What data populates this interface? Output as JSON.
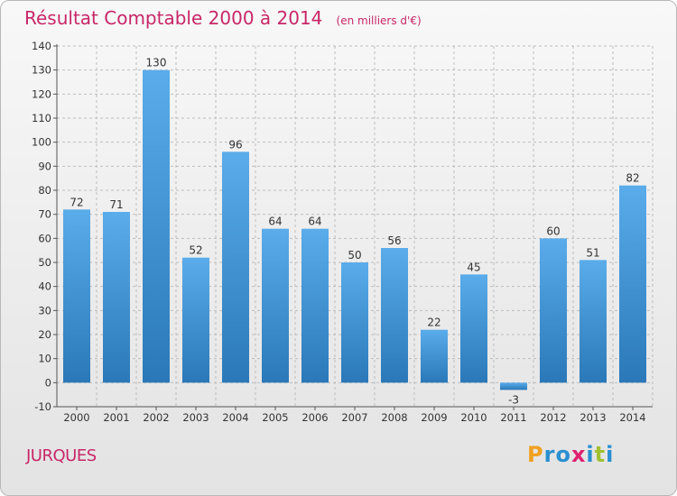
{
  "header": {
    "title": "Résultat Comptable 2000 à 2014",
    "unit": "(en milliers d'€)"
  },
  "commune": "JURQUES",
  "logo": {
    "letters": [
      "P",
      "r",
      "o",
      "x",
      "i",
      "t",
      "i"
    ],
    "colors": [
      "#f0a020",
      "#2a8fd0",
      "#2a8fd0",
      "#e02070",
      "#2a8fd0",
      "#a0c030",
      "#2a8fd0"
    ]
  },
  "colors": {
    "bar_light": "#5aacea",
    "bar_dark": "#2a78b8",
    "grid": "#bdbdbd",
    "title": "#c82768"
  },
  "chart_data": {
    "type": "bar",
    "title": "Résultat Comptable 2000 à 2014",
    "subtitle": "(en milliers d'€)",
    "categories": [
      "2000",
      "2001",
      "2002",
      "2003",
      "2004",
      "2005",
      "2006",
      "2007",
      "2008",
      "2009",
      "2010",
      "2011",
      "2012",
      "2013",
      "2014"
    ],
    "values": [
      72,
      71,
      130,
      52,
      96,
      64,
      64,
      50,
      56,
      22,
      45,
      -3,
      60,
      51,
      82
    ],
    "value_labels": [
      "72",
      "71",
      "130",
      "52",
      "96",
      "64",
      "64",
      "50",
      "56",
      "22",
      "45",
      "-3",
      "60",
      "51",
      "82"
    ],
    "ylim": [
      -10,
      140
    ],
    "yticks": [
      -10,
      0,
      10,
      20,
      30,
      40,
      50,
      60,
      70,
      80,
      90,
      100,
      110,
      120,
      130,
      140
    ],
    "ytick_labels": [
      "-10",
      "0",
      "10",
      "20",
      "30",
      "40",
      "50",
      "60",
      "70",
      "80",
      "90",
      "100",
      "110",
      "120",
      "130",
      "140"
    ],
    "grid": true,
    "xlabel": "",
    "ylabel": ""
  }
}
